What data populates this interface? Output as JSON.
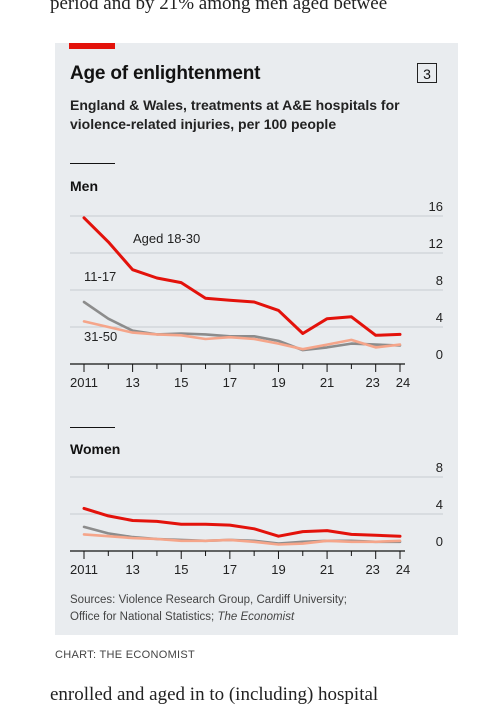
{
  "article": {
    "top_line": "period and by 21% among men aged betwee",
    "bottom_line": "enrolled and aged in to (including) hospital"
  },
  "chart": {
    "title": "Age of enlightenment",
    "number": "3",
    "subtitle": "England & Wales, treatments at A&E hospitals for violence-related injuries, per 100 people",
    "source_line1": "Sources: Violence Research Group, Cardiff University;",
    "source_line2_prefix": "Office for National Statistics; ",
    "source_line2_italic": "The Economist",
    "credit": "CHART: THE ECONOMIST"
  },
  "colors": {
    "red": "#e3120b",
    "grey": "#8c8c8c",
    "pink": "#f5a58a",
    "axis": "#121212",
    "background": "#e9ecef"
  },
  "chart_data": [
    {
      "type": "line",
      "panel": "Men",
      "x": [
        2011,
        2012,
        2013,
        2014,
        2015,
        2016,
        2017,
        2018,
        2019,
        2020,
        2021,
        2022,
        2023,
        2024
      ],
      "x_tick_labels": [
        "2011",
        "13",
        "15",
        "17",
        "19",
        "21",
        "23",
        "24"
      ],
      "ylim": [
        0,
        16
      ],
      "y_ticks": [
        0,
        4,
        8,
        12,
        16
      ],
      "series": [
        {
          "name": "Aged 18-30",
          "color": "#e3120b",
          "values": [
            15.8,
            13.2,
            10.2,
            9.3,
            8.8,
            7.1,
            6.9,
            6.7,
            5.8,
            3.3,
            4.9,
            5.1,
            3.1,
            3.2
          ]
        },
        {
          "name": "11-17",
          "color": "#8c8c8c",
          "values": [
            6.7,
            4.9,
            3.6,
            3.2,
            3.3,
            3.2,
            3.0,
            3.0,
            2.5,
            1.5,
            1.8,
            2.2,
            2.1,
            2.0
          ]
        },
        {
          "name": "31-50",
          "color": "#f5a58a",
          "values": [
            4.6,
            4.0,
            3.4,
            3.2,
            3.1,
            2.7,
            2.9,
            2.7,
            2.2,
            1.6,
            2.1,
            2.6,
            1.8,
            2.1
          ]
        }
      ]
    },
    {
      "type": "line",
      "panel": "Women",
      "x": [
        2011,
        2012,
        2013,
        2014,
        2015,
        2016,
        2017,
        2018,
        2019,
        2020,
        2021,
        2022,
        2023,
        2024
      ],
      "x_tick_labels": [
        "2011",
        "13",
        "15",
        "17",
        "19",
        "21",
        "23",
        "24"
      ],
      "ylim": [
        0,
        8
      ],
      "y_ticks": [
        0,
        4,
        8
      ],
      "series": [
        {
          "name": "Aged 18-30",
          "color": "#e3120b",
          "values": [
            4.6,
            3.8,
            3.3,
            3.2,
            2.9,
            2.9,
            2.8,
            2.4,
            1.6,
            2.1,
            2.2,
            1.8,
            1.7,
            1.6
          ]
        },
        {
          "name": "11-17",
          "color": "#8c8c8c",
          "values": [
            2.6,
            1.9,
            1.5,
            1.3,
            1.2,
            1.1,
            1.2,
            1.1,
            0.8,
            1.0,
            1.1,
            1.1,
            1.0,
            1.0
          ]
        },
        {
          "name": "31-50",
          "color": "#f5a58a",
          "values": [
            1.8,
            1.6,
            1.4,
            1.3,
            1.1,
            1.1,
            1.2,
            1.0,
            0.7,
            0.8,
            1.1,
            1.0,
            1.0,
            1.1
          ]
        }
      ]
    }
  ]
}
